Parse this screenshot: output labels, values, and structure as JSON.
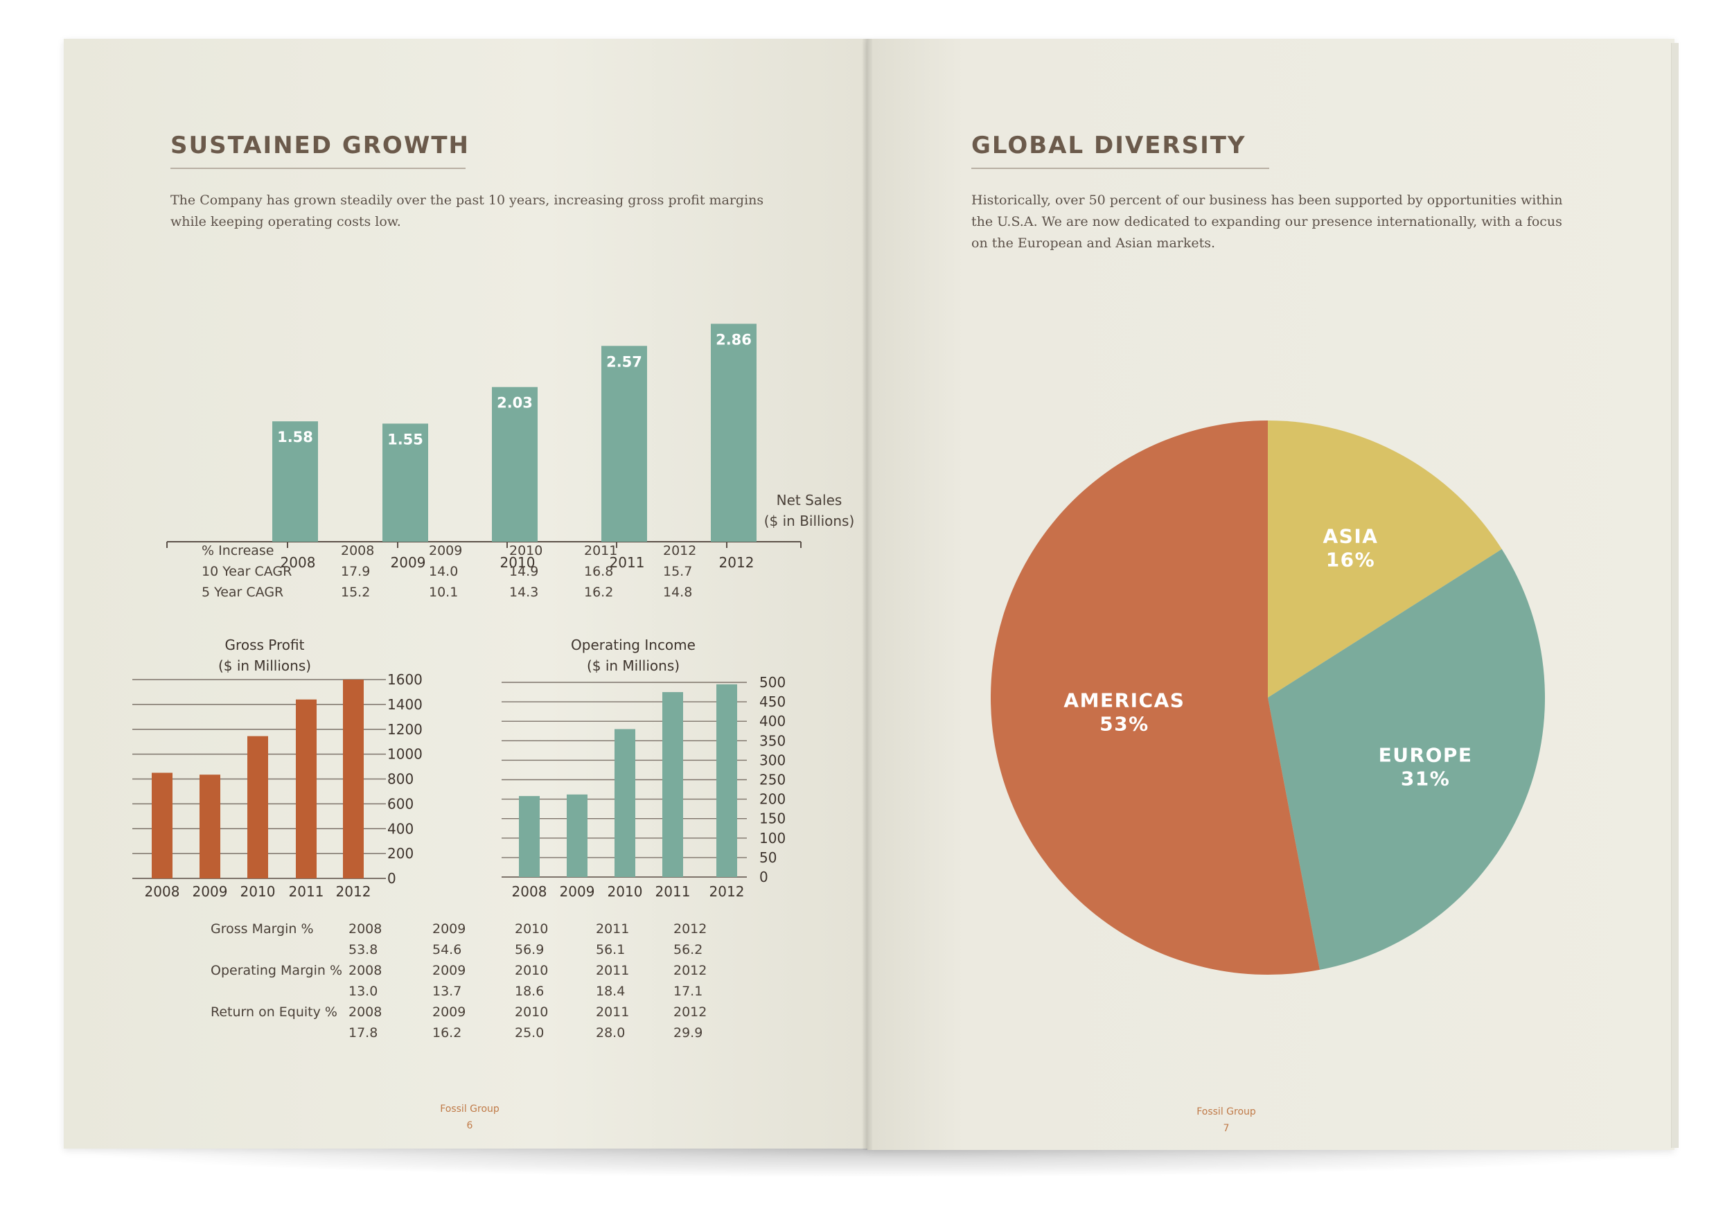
{
  "left_page": {
    "heading": "SUSTAINED GROWTH",
    "intro_line1": "The Company has grown steadily over the past 10 years, increasing gross profit margins",
    "intro_line2": "while keeping operating costs low.",
    "footer_brand": "Fossil Group",
    "footer_page": "6"
  },
  "right_page": {
    "heading": "GLOBAL DIVERSITY",
    "intro_line1": "Historically, over 50 percent of our business has been supported by opportunities within",
    "intro_line2": "the U.S.A. We are now dedicated to expanding our presence internationally, with a focus",
    "intro_line3": "on the European and Asian markets.",
    "footer_brand": "Fossil Group",
    "footer_page": "7"
  },
  "increase_table": {
    "header": [
      "% Increase",
      "2008",
      "2009",
      "2010",
      "2011",
      "2012"
    ],
    "rows": [
      [
        "10 Year CAGR",
        "17.9",
        "14.0",
        "14.9",
        "16.8",
        "15.7"
      ],
      [
        "5 Year CAGR",
        "15.2",
        "10.1",
        "14.3",
        "16.2",
        "14.8"
      ]
    ]
  },
  "margin_table": {
    "rows": [
      [
        "Gross Margin %",
        "2008",
        "2009",
        "2010",
        "2011",
        "2012"
      ],
      [
        "",
        "53.8",
        "54.6",
        "56.9",
        "56.1",
        "56.2"
      ],
      [
        "Operating Margin %",
        "2008",
        "2009",
        "2010",
        "2011",
        "2012"
      ],
      [
        "",
        "13.0",
        "13.7",
        "18.6",
        "18.4",
        "17.1"
      ],
      [
        "Return on Equity %",
        "2008",
        "2009",
        "2010",
        "2011",
        "2012"
      ],
      [
        "",
        "17.8",
        "16.2",
        "25.0",
        "28.0",
        "29.9"
      ]
    ]
  },
  "colors": {
    "teal": "#7aab9c",
    "orange": "#bd5f33",
    "pie_orange": "#c8704a",
    "pie_yellow": "#d9c266",
    "pie_teal": "#7bab9c",
    "heading": "#6b5a4b"
  },
  "chart_data": [
    {
      "type": "bar",
      "title": "Net Sales",
      "subtitle": "($ in Billions)",
      "categories": [
        "2008",
        "2009",
        "2010",
        "2011",
        "2012"
      ],
      "values": [
        1.58,
        1.55,
        2.03,
        2.57,
        2.86
      ],
      "value_labels": [
        "1.58",
        "1.55",
        "2.03",
        "2.57",
        "2.86"
      ]
    },
    {
      "type": "bar",
      "title": "Gross Profit",
      "subtitle": "($ in Millions)",
      "categories": [
        "2008",
        "2009",
        "2010",
        "2011",
        "2012"
      ],
      "values": [
        850,
        835,
        1145,
        1440,
        1600
      ],
      "ylim": [
        0,
        1600
      ],
      "yticks": [
        "0",
        "200",
        "400",
        "600",
        "800",
        "1000",
        "1200",
        "1400",
        "1600"
      ],
      "grid": true
    },
    {
      "type": "bar",
      "title": "Operating Income",
      "subtitle": "($ in Millions)",
      "categories": [
        "2008",
        "2009",
        "2010",
        "2011",
        "2012"
      ],
      "values": [
        208,
        212,
        380,
        475,
        495
      ],
      "ylim": [
        0,
        500
      ],
      "yticks": [
        "0",
        "50",
        "100",
        "150",
        "200",
        "250",
        "300",
        "350",
        "400",
        "450",
        "500"
      ],
      "grid": true
    },
    {
      "type": "pie",
      "labels": [
        "ASIA",
        "EUROPE",
        "AMERICAS"
      ],
      "values": [
        16,
        31,
        53
      ],
      "value_labels": [
        "16%",
        "31%",
        "53%"
      ]
    }
  ]
}
